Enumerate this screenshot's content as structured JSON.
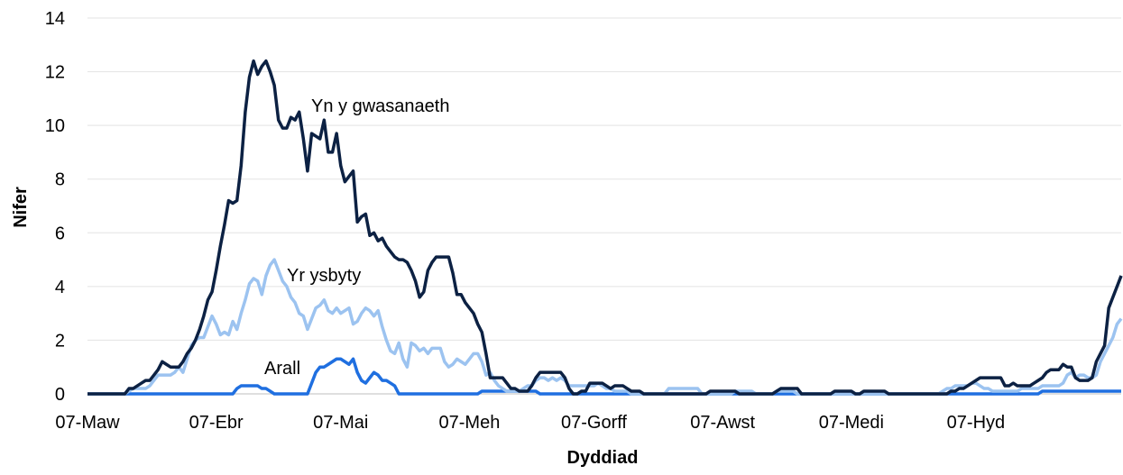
{
  "chart_data": {
    "type": "line",
    "x_label": "Dyddiad",
    "y_label": "Nifer",
    "ylim": [
      0,
      14
    ],
    "yticks": [
      0,
      2,
      4,
      6,
      8,
      10,
      12,
      14
    ],
    "grid": true,
    "categories": [
      "07-Maw",
      null,
      null,
      null,
      null,
      null,
      null,
      null,
      null,
      null,
      null,
      null,
      null,
      null,
      null,
      null,
      null,
      null,
      null,
      null,
      null,
      null,
      null,
      null,
      null,
      null,
      null,
      null,
      null,
      null,
      null,
      "07-Ebr",
      null,
      null,
      null,
      null,
      null,
      null,
      null,
      null,
      null,
      null,
      null,
      null,
      null,
      null,
      null,
      null,
      null,
      null,
      null,
      null,
      null,
      null,
      null,
      null,
      null,
      null,
      null,
      null,
      null,
      "07-Mai",
      null,
      null,
      null,
      null,
      null,
      null,
      null,
      null,
      null,
      null,
      null,
      null,
      null,
      null,
      null,
      null,
      null,
      null,
      null,
      null,
      null,
      null,
      null,
      null,
      null,
      null,
      null,
      null,
      null,
      null,
      "07-Meh",
      null,
      null,
      null,
      null,
      null,
      null,
      null,
      null,
      null,
      null,
      null,
      null,
      null,
      null,
      null,
      null,
      null,
      null,
      null,
      null,
      null,
      null,
      null,
      null,
      null,
      null,
      null,
      null,
      null,
      "07-Gorff",
      null,
      null,
      null,
      null,
      null,
      null,
      null,
      null,
      null,
      null,
      null,
      null,
      null,
      null,
      null,
      null,
      null,
      null,
      null,
      null,
      null,
      null,
      null,
      null,
      null,
      null,
      null,
      null,
      null,
      null,
      "07-Awst",
      null,
      null,
      null,
      null,
      null,
      null,
      null,
      null,
      null,
      null,
      null,
      null,
      null,
      null,
      null,
      null,
      null,
      null,
      null,
      null,
      null,
      null,
      null,
      null,
      null,
      null,
      null,
      null,
      null,
      null,
      "07-Medi",
      null,
      null,
      null,
      null,
      null,
      null,
      null,
      null,
      null,
      null,
      null,
      null,
      null,
      null,
      null,
      null,
      null,
      null,
      null,
      null,
      null,
      null,
      null,
      null,
      null,
      null,
      null,
      null,
      null,
      "07-Hyd",
      null,
      null,
      null,
      null,
      null,
      null,
      null,
      null,
      null,
      null,
      null,
      null,
      null,
      null,
      null,
      null,
      null,
      null,
      null,
      null,
      null,
      null,
      null,
      null,
      null,
      null,
      null,
      null,
      null,
      null,
      null,
      null,
      null,
      null,
      null
    ],
    "series": [
      {
        "name": "Yn y gwasanaeth",
        "color": "#0c2143",
        "values": [
          0,
          0,
          0,
          0,
          0,
          0,
          0,
          0,
          0,
          0,
          0.2,
          0.2,
          0.3,
          0.4,
          0.5,
          0.5,
          0.7,
          0.9,
          1.2,
          1.1,
          1.0,
          1.0,
          1.0,
          1.2,
          1.5,
          1.7,
          2.0,
          2.4,
          2.9,
          3.5,
          3.8,
          4.6,
          5.5,
          6.3,
          7.2,
          7.1,
          7.2,
          8.5,
          10.5,
          11.8,
          12.4,
          11.9,
          12.2,
          12.4,
          12.0,
          11.5,
          10.2,
          9.9,
          9.9,
          10.3,
          10.2,
          10.5,
          9.5,
          8.3,
          9.7,
          9.6,
          9.5,
          10.2,
          9.0,
          9.0,
          9.7,
          8.5,
          7.9,
          8.1,
          8.3,
          6.4,
          6.6,
          6.7,
          5.9,
          6.0,
          5.7,
          5.8,
          5.5,
          5.3,
          5.1,
          5.0,
          5.0,
          4.9,
          4.6,
          4.2,
          3.6,
          3.8,
          4.6,
          4.9,
          5.1,
          5.1,
          5.1,
          5.1,
          4.5,
          3.7,
          3.7,
          3.4,
          3.2,
          3.0,
          2.6,
          2.3,
          1.5,
          0.6,
          0.6,
          0.6,
          0.6,
          0.4,
          0.2,
          0.2,
          0.1,
          0.1,
          0.1,
          0.3,
          0.6,
          0.8,
          0.8,
          0.8,
          0.8,
          0.8,
          0.8,
          0.6,
          0.2,
          0,
          0,
          0.1,
          0.1,
          0.4,
          0.4,
          0.4,
          0.4,
          0.3,
          0.2,
          0.3,
          0.3,
          0.3,
          0.2,
          0.1,
          0.1,
          0.1,
          0,
          0,
          0,
          0,
          0,
          0,
          0,
          0,
          0,
          0,
          0,
          0,
          0,
          0,
          0,
          0,
          0.1,
          0.1,
          0.1,
          0.1,
          0.1,
          0.1,
          0.1,
          0,
          0,
          0,
          0,
          0,
          0,
          0,
          0,
          0,
          0.1,
          0.2,
          0.2,
          0.2,
          0.2,
          0.2,
          0,
          0,
          0,
          0,
          0,
          0,
          0,
          0,
          0.1,
          0.1,
          0.1,
          0.1,
          0.1,
          0,
          0,
          0.1,
          0.1,
          0.1,
          0.1,
          0.1,
          0.1,
          0,
          0,
          0,
          0,
          0,
          0,
          0,
          0,
          0,
          0,
          0,
          0,
          0,
          0,
          0,
          0.1,
          0.1,
          0.2,
          0.2,
          0.3,
          0.4,
          0.5,
          0.6,
          0.6,
          0.6,
          0.6,
          0.6,
          0.6,
          0.3,
          0.3,
          0.4,
          0.3,
          0.3,
          0.3,
          0.3,
          0.4,
          0.5,
          0.6,
          0.8,
          0.9,
          0.9,
          0.9,
          1.1,
          1.0,
          1.0,
          0.6,
          0.5,
          0.5,
          0.5,
          0.6,
          1.2,
          1.5,
          1.8,
          3.2,
          3.6,
          4.0,
          4.4
        ]
      },
      {
        "name": "Yr ysbyty",
        "color": "#9cc3f0",
        "values": [
          0,
          0,
          0,
          0,
          0,
          0,
          0,
          0,
          0,
          0,
          0.1,
          0.2,
          0.2,
          0.2,
          0.2,
          0.3,
          0.5,
          0.7,
          0.7,
          0.7,
          0.7,
          0.8,
          1.0,
          0.8,
          1.3,
          1.8,
          2.0,
          2.1,
          2.1,
          2.5,
          2.9,
          2.6,
          2.2,
          2.3,
          2.2,
          2.7,
          2.4,
          3.0,
          3.5,
          4.1,
          4.3,
          4.2,
          3.7,
          4.4,
          4.8,
          5.0,
          4.6,
          4.2,
          4.0,
          3.6,
          3.4,
          3.0,
          2.9,
          2.4,
          2.8,
          3.2,
          3.3,
          3.5,
          3.1,
          3.0,
          3.2,
          3.0,
          3.1,
          3.2,
          2.6,
          2.7,
          3.0,
          3.2,
          3.1,
          2.9,
          3.1,
          2.5,
          2.0,
          1.6,
          1.5,
          1.9,
          1.3,
          1.0,
          1.9,
          1.8,
          1.6,
          1.7,
          1.5,
          1.7,
          1.7,
          1.7,
          1.2,
          1.0,
          1.1,
          1.3,
          1.2,
          1.1,
          1.3,
          1.5,
          1.5,
          1.2,
          0.7,
          0.8,
          0.5,
          0.3,
          0.2,
          0.1,
          0.1,
          0.1,
          0.1,
          0.2,
          0.3,
          0.3,
          0.5,
          0.6,
          0.6,
          0.5,
          0.6,
          0.5,
          0.6,
          0.5,
          0.3,
          0.3,
          0.3,
          0.3,
          0.3,
          0.3,
          0.3,
          0.4,
          0.3,
          0.2,
          0.2,
          0.1,
          0.1,
          0.1,
          0.1,
          0,
          0,
          0,
          0,
          0,
          0,
          0,
          0,
          0,
          0.2,
          0.2,
          0.2,
          0.2,
          0.2,
          0.2,
          0.2,
          0.2,
          0,
          0,
          0,
          0,
          0,
          0,
          0,
          0,
          0.1,
          0.1,
          0.1,
          0.1,
          0.1,
          0,
          0,
          0,
          0,
          0,
          0.1,
          0.1,
          0.1,
          0.1,
          0.1,
          0,
          0,
          0,
          0,
          0,
          0,
          0,
          0,
          0,
          0,
          0,
          0,
          0,
          0,
          0,
          0,
          0,
          0,
          0,
          0,
          0,
          0,
          0,
          0,
          0,
          0,
          0,
          0,
          0,
          0,
          0,
          0,
          0,
          0,
          0,
          0.1,
          0.2,
          0.2,
          0.3,
          0.3,
          0.3,
          0.3,
          0.4,
          0.4,
          0.3,
          0.2,
          0.2,
          0.1,
          0.1,
          0.1,
          0.1,
          0.1,
          0.1,
          0.1,
          0.2,
          0.2,
          0.2,
          0.2,
          0.2,
          0.3,
          0.3,
          0.3,
          0.3,
          0.3,
          0.4,
          0.7,
          0.8,
          0.6,
          0.7,
          0.7,
          0.6,
          0.6,
          0.7,
          1.2,
          1.5,
          1.8,
          2.1,
          2.6,
          2.8
        ]
      },
      {
        "name": "Arall",
        "color": "#1f6fe0",
        "values": [
          0,
          0,
          0,
          0,
          0,
          0,
          0,
          0,
          0,
          0,
          0,
          0,
          0,
          0,
          0,
          0,
          0,
          0,
          0,
          0,
          0,
          0,
          0,
          0,
          0,
          0,
          0,
          0,
          0,
          0,
          0,
          0,
          0,
          0,
          0,
          0,
          0.2,
          0.3,
          0.3,
          0.3,
          0.3,
          0.3,
          0.2,
          0.2,
          0.1,
          0,
          0,
          0,
          0,
          0,
          0,
          0,
          0,
          0,
          0.4,
          0.8,
          1.0,
          1.0,
          1.1,
          1.2,
          1.3,
          1.3,
          1.2,
          1.1,
          1.3,
          0.8,
          0.5,
          0.4,
          0.6,
          0.8,
          0.7,
          0.5,
          0.5,
          0.4,
          0.3,
          0,
          0,
          0,
          0,
          0,
          0,
          0,
          0,
          0,
          0,
          0,
          0,
          0,
          0,
          0,
          0,
          0,
          0,
          0,
          0,
          0.1,
          0.1,
          0.1,
          0.1,
          0.1,
          0.1,
          0.1,
          0.1,
          0.1,
          0.1,
          0.1,
          0.1,
          0.1,
          0.1,
          0,
          0,
          0,
          0,
          0,
          0,
          0,
          0,
          0,
          0,
          0,
          0,
          0,
          0,
          0,
          0,
          0,
          0,
          0,
          0,
          0,
          0,
          0,
          0,
          0,
          0,
          0,
          0,
          0,
          0,
          0,
          0,
          0,
          0,
          0,
          0,
          0,
          0,
          0,
          0,
          0,
          0,
          0,
          0,
          0,
          0,
          0,
          0,
          0,
          0,
          0,
          0,
          0,
          0,
          0,
          0,
          0,
          0,
          0,
          0,
          0,
          0,
          0,
          0,
          0,
          0,
          0,
          0,
          0,
          0,
          0,
          0,
          0,
          0,
          0,
          0,
          0,
          0,
          0,
          0,
          0,
          0,
          0,
          0,
          0,
          0,
          0,
          0,
          0,
          0,
          0,
          0,
          0,
          0,
          0,
          0,
          0,
          0,
          0,
          0,
          0,
          0,
          0,
          0,
          0,
          0,
          0,
          0,
          0,
          0,
          0,
          0,
          0,
          0,
          0,
          0,
          0,
          0,
          0,
          0,
          0,
          0.1,
          0.1,
          0.1,
          0.1,
          0.1,
          0.1,
          0.1,
          0.1,
          0.1,
          0.1,
          0.1,
          0.1,
          0.1,
          0.1,
          0.1,
          0.1,
          0.1,
          0.1,
          0.1,
          0.1
        ]
      }
    ]
  }
}
